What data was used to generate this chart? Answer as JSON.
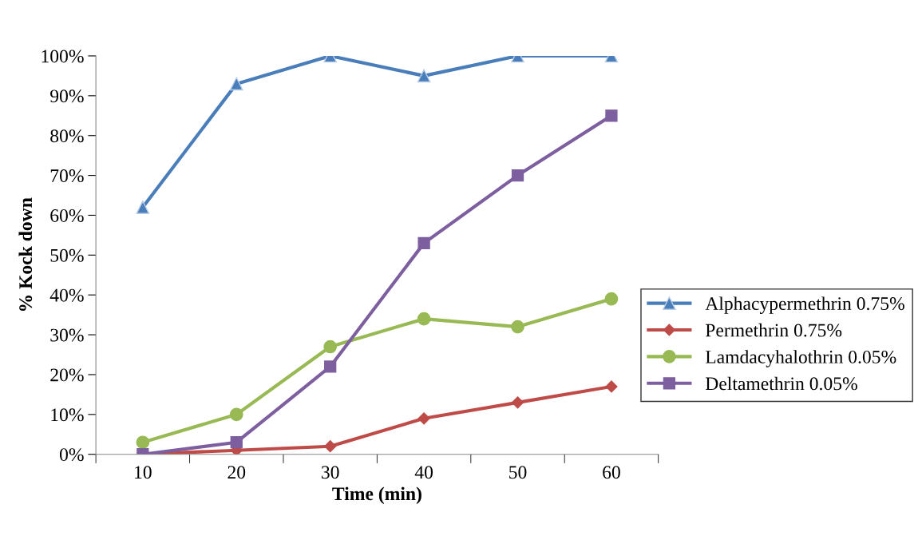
{
  "chart_data": {
    "type": "line",
    "xlabel": "Time (min)",
    "ylabel": "% Kock down",
    "categories": [
      "10",
      "20",
      "30",
      "40",
      "50",
      "60"
    ],
    "series": [
      {
        "name": "Alphacypermethrin 0.75%",
        "color": "#4a7ebb",
        "marker": "triangle",
        "values": [
          62,
          93,
          100,
          95,
          100,
          100
        ]
      },
      {
        "name": "Permethrin 0.75%",
        "color": "#be4b48",
        "marker": "diamond",
        "values": [
          0,
          1,
          2,
          9,
          13,
          17
        ]
      },
      {
        "name": "Lamdacyhalothrin 0.05%",
        "color": "#98b954",
        "marker": "circle",
        "values": [
          3,
          10,
          27,
          34,
          32,
          39
        ]
      },
      {
        "name": "Deltamethrin 0.05%",
        "color": "#7d5fa0",
        "marker": "square",
        "values": [
          0,
          3,
          22,
          53,
          70,
          85
        ]
      }
    ],
    "ylim": [
      0,
      100
    ],
    "yticks": [
      {
        "value": 0,
        "label": "0%"
      },
      {
        "value": 10,
        "label": "10%"
      },
      {
        "value": 20,
        "label": "20%"
      },
      {
        "value": 30,
        "label": "30%"
      },
      {
        "value": 40,
        "label": "40%"
      },
      {
        "value": 50,
        "label": "50%"
      },
      {
        "value": 60,
        "label": "60%"
      },
      {
        "value": 70,
        "label": "70%"
      },
      {
        "value": 80,
        "label": "80%"
      },
      {
        "value": 90,
        "label": "90%"
      },
      {
        "value": 100,
        "label": "100%"
      }
    ],
    "grid": false,
    "legend": "right"
  }
}
